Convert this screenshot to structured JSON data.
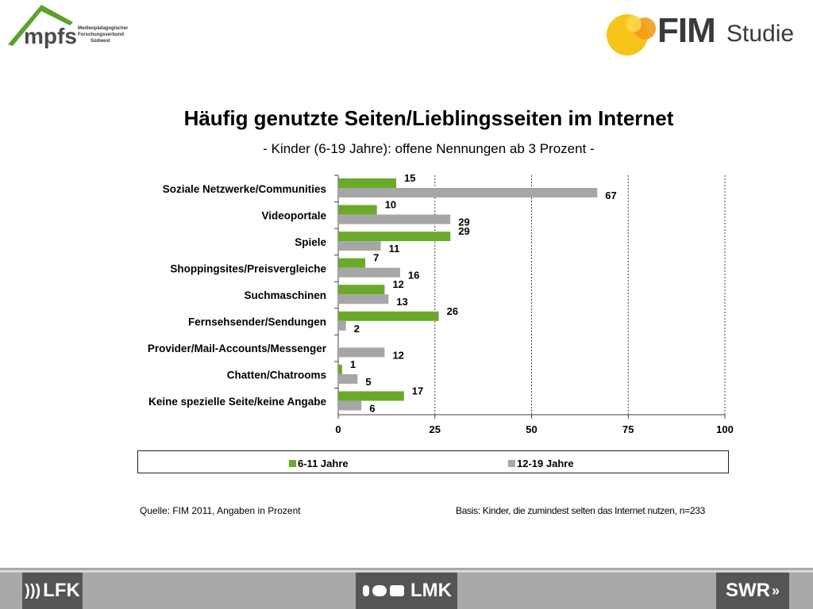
{
  "header": {
    "mpfs_logo_text": "mpfs",
    "mpfs_subtitle": [
      "Medienpädagogischer",
      "Forschungsverbund",
      "Südwest"
    ],
    "fim_logo_text": "FIM",
    "fim_logo_sub": "Studie"
  },
  "chart_data": {
    "type": "bar",
    "orientation": "horizontal",
    "title": "Häufig genutzte Seiten/Lieblingsseiten im Internet",
    "subtitle": "- Kinder (6-19 Jahre): offene Nennungen ab 3 Prozent -",
    "categories": [
      "Soziale Netzwerke/Communities",
      "Videoportale",
      "Spiele",
      "Shoppingsites/Preisvergleiche",
      "Suchmaschinen",
      "Fernsehsender/Sendungen",
      "Provider/Mail-Accounts/Messenger",
      "Chatten/Chatrooms",
      "Keine spezielle Seite/keine  Angabe"
    ],
    "series": [
      {
        "name": "6-11 Jahre",
        "color": "#6aaa2a",
        "values": [
          15,
          10,
          29,
          7,
          12,
          26,
          null,
          1,
          17
        ]
      },
      {
        "name": "12-19 Jahre",
        "color": "#a6a6a6",
        "values": [
          67,
          29,
          11,
          16,
          13,
          2,
          12,
          5,
          6
        ]
      }
    ],
    "xlim": [
      0,
      100
    ],
    "xticks": [
      "0",
      "25",
      "50",
      "75",
      "100"
    ],
    "grid": "dotted vertical",
    "legend_position": "bottom"
  },
  "legend": {
    "items": [
      {
        "label": "6-11 Jahre",
        "color": "#6aaa2a"
      },
      {
        "label": "12-19 Jahre",
        "color": "#a6a6a6"
      }
    ]
  },
  "footer": {
    "source": "Quelle: FIM 2011,  Angaben in Prozent",
    "basis": "Basis: Kinder, die zumindest selten das Internet nutzen, n=233"
  },
  "partners": {
    "lfk": "LFK",
    "lmk": "LMK",
    "swr": "SWR"
  }
}
